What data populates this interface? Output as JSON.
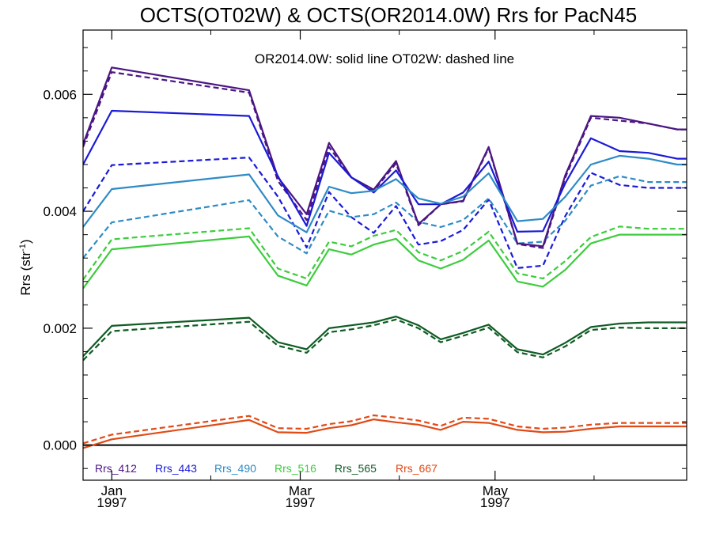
{
  "chart_data": {
    "type": "line",
    "title": "OCTS(OT02W) & OCTS(OR2014.0W)  Rrs for PacN45",
    "subtitle": "OR2014.0W: solid line   OT02W: dashed line",
    "ylabel": "Rrs (str",
    "ylabel_sup": "-1",
    "ylabel_close": ")",
    "ylim": [
      -0.0006,
      0.0071
    ],
    "xlim": [
      "1996-12-23",
      "1997-06-30"
    ],
    "yticks": [
      {
        "value": 0.0,
        "label": "0.000"
      },
      {
        "value": 0.002,
        "label": "0.002"
      },
      {
        "value": 0.004,
        "label": "0.004"
      },
      {
        "value": 0.006,
        "label": "0.006"
      }
    ],
    "xticks": [
      {
        "date": "1997-01-01",
        "month": "Jan",
        "year": "1997"
      },
      {
        "date": "1997-03-01",
        "month": "Mar",
        "year": "1997"
      },
      {
        "date": "1997-05-01",
        "month": "May",
        "year": "1997"
      }
    ],
    "zero_line": true,
    "grid": false,
    "legend_position": "bottom-left",
    "x": [
      "1996-12-23",
      "1997-01-01",
      "1997-02-13",
      "1997-02-22",
      "1997-03-03",
      "1997-03-10",
      "1997-03-17",
      "1997-03-24",
      "1997-03-31",
      "1997-04-07",
      "1997-04-14",
      "1997-04-21",
      "1997-04-29",
      "1997-05-08",
      "1997-05-16",
      "1997-05-23",
      "1997-05-31",
      "1997-06-09",
      "1997-06-18",
      "1997-06-27",
      "1997-06-30"
    ],
    "series": [
      {
        "name": "Rrs_412",
        "color": "#4b1583",
        "style": "solid",
        "values": [
          0.00515,
          0.00646,
          0.00607,
          0.00458,
          0.00395,
          0.00517,
          0.00458,
          0.00437,
          0.00486,
          0.00378,
          0.00412,
          0.00418,
          0.0051,
          0.00345,
          0.0034,
          0.00462,
          0.00563,
          0.0056,
          0.0055,
          0.0054,
          0.0054
        ]
      },
      {
        "name": "Rrs_412 (OT02W)",
        "color": "#4b1583",
        "style": "dashed",
        "values": [
          0.0051,
          0.00638,
          0.00603,
          0.00452,
          0.00385,
          0.0051,
          0.00458,
          0.00435,
          0.00482,
          0.00376,
          0.00412,
          0.00417,
          0.00508,
          0.00344,
          0.00337,
          0.00458,
          0.0056,
          0.00555,
          0.0055,
          0.0054,
          0.0054
        ]
      },
      {
        "name": "Rrs_443",
        "color": "#1a1ad8",
        "style": "solid",
        "values": [
          0.0048,
          0.00572,
          0.00563,
          0.0046,
          0.00375,
          0.005,
          0.00458,
          0.00432,
          0.0047,
          0.00412,
          0.00412,
          0.00432,
          0.00485,
          0.00365,
          0.00366,
          0.00448,
          0.00525,
          0.00503,
          0.005,
          0.0049,
          0.0049
        ]
      },
      {
        "name": "Rrs_443 (OT02W)",
        "color": "#1a1ad8",
        "style": "dashed",
        "values": [
          0.004,
          0.00479,
          0.00492,
          0.00425,
          0.00338,
          0.00433,
          0.0039,
          0.00363,
          0.00409,
          0.00343,
          0.00349,
          0.00368,
          0.0042,
          0.00303,
          0.00307,
          0.00392,
          0.00466,
          0.00445,
          0.0044,
          0.0044,
          0.0044
        ]
      },
      {
        "name": "Rrs_490",
        "color": "#2e8bc6",
        "style": "solid",
        "values": [
          0.00373,
          0.00438,
          0.00463,
          0.00393,
          0.00364,
          0.00442,
          0.00431,
          0.00435,
          0.00455,
          0.00422,
          0.00413,
          0.00425,
          0.00465,
          0.00383,
          0.00387,
          0.00425,
          0.0048,
          0.00495,
          0.0049,
          0.0048,
          0.0048
        ]
      },
      {
        "name": "Rrs_490 (OT02W)",
        "color": "#2e8bc6",
        "style": "dashed",
        "values": [
          0.0032,
          0.00381,
          0.00419,
          0.00357,
          0.00328,
          0.00401,
          0.0039,
          0.00395,
          0.00415,
          0.00382,
          0.00373,
          0.00385,
          0.00422,
          0.00345,
          0.00348,
          0.00384,
          0.00444,
          0.0046,
          0.0045,
          0.0045,
          0.0045
        ]
      },
      {
        "name": "Rrs_516",
        "color": "#3dcc3d",
        "style": "solid",
        "values": [
          0.00268,
          0.00335,
          0.00357,
          0.0029,
          0.00273,
          0.00335,
          0.00326,
          0.00343,
          0.00353,
          0.00316,
          0.00302,
          0.00317,
          0.0035,
          0.0028,
          0.00271,
          0.003,
          0.00345,
          0.0036,
          0.0036,
          0.0036,
          0.0036
        ]
      },
      {
        "name": "Rrs_516 (OT02W)",
        "color": "#3dcc3d",
        "style": "dashed",
        "values": [
          0.00283,
          0.00352,
          0.00371,
          0.00302,
          0.00285,
          0.00348,
          0.0034,
          0.00358,
          0.00368,
          0.0033,
          0.00316,
          0.00332,
          0.00365,
          0.00294,
          0.00285,
          0.00315,
          0.00356,
          0.00374,
          0.0037,
          0.0037,
          0.0037
        ]
      },
      {
        "name": "Rrs_565",
        "color": "#0f5c24",
        "style": "solid",
        "values": [
          0.00152,
          0.00204,
          0.00218,
          0.00176,
          0.00164,
          0.002,
          0.00205,
          0.0021,
          0.0022,
          0.00205,
          0.00181,
          0.00192,
          0.00206,
          0.00164,
          0.00155,
          0.00175,
          0.00202,
          0.00208,
          0.0021,
          0.0021,
          0.0021
        ]
      },
      {
        "name": "Rrs_565 (OT02W)",
        "color": "#0f5c24",
        "style": "dashed",
        "values": [
          0.00145,
          0.00195,
          0.00211,
          0.0017,
          0.00158,
          0.00193,
          0.00198,
          0.00205,
          0.00215,
          0.002,
          0.00176,
          0.00187,
          0.00201,
          0.00159,
          0.0015,
          0.00169,
          0.00197,
          0.00201,
          0.002,
          0.002,
          0.002
        ]
      },
      {
        "name": "Rrs_667",
        "color": "#e14a16",
        "style": "solid",
        "values": [
          -5e-05,
          0.0001,
          0.00043,
          0.00022,
          0.00021,
          0.00029,
          0.00034,
          0.00044,
          0.00039,
          0.00035,
          0.00026,
          0.0004,
          0.00038,
          0.00026,
          0.00022,
          0.00023,
          0.00028,
          0.00032,
          0.00032,
          0.00032,
          0.00032
        ]
      },
      {
        "name": "Rrs_667 (OT02W)",
        "color": "#e14a16",
        "style": "dashed",
        "values": [
          3e-05,
          0.00018,
          0.0005,
          0.00029,
          0.00028,
          0.00036,
          0.00041,
          0.00051,
          0.00047,
          0.00042,
          0.00033,
          0.00047,
          0.00045,
          0.00032,
          0.00028,
          0.0003,
          0.00035,
          0.00038,
          0.00038,
          0.00038,
          0.00038
        ]
      }
    ],
    "legend": [
      {
        "label": "Rrs_412",
        "color": "#4b1583"
      },
      {
        "label": "Rrs_443",
        "color": "#1a1ad8"
      },
      {
        "label": "Rrs_490",
        "color": "#2e8bc6"
      },
      {
        "label": "Rrs_516",
        "color": "#3dcc3d"
      },
      {
        "label": "Rrs_565",
        "color": "#0f5c24"
      },
      {
        "label": "Rrs_667",
        "color": "#e14a16"
      }
    ]
  }
}
